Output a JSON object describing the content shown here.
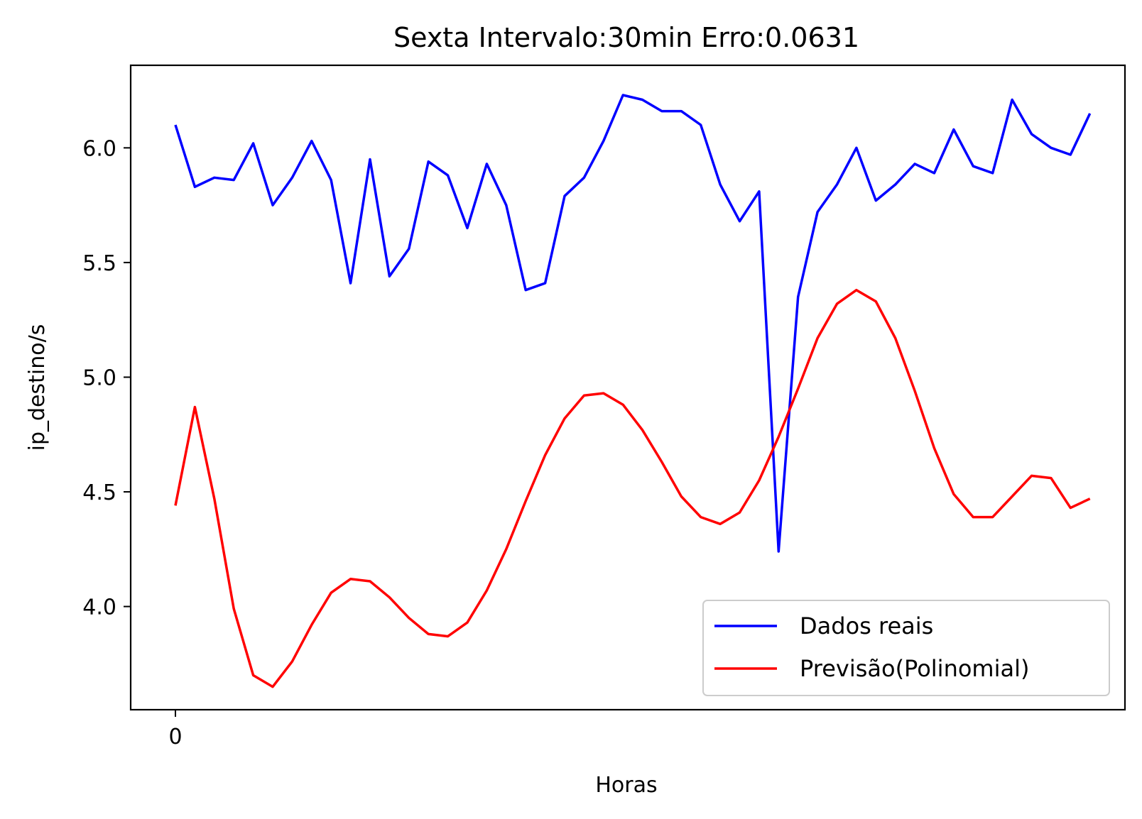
{
  "chart_data": {
    "type": "line",
    "title": "Sexta Intervalo:30min Erro:0.0631",
    "xlabel": "Horas",
    "ylabel": "ip_destino/s",
    "x_ticks": [
      0
    ],
    "y_ticks": [
      "4.0",
      "4.5",
      "5.0",
      "5.5",
      "6.0"
    ],
    "xlim": [
      -2.3,
      48.8
    ],
    "ylim": [
      3.55,
      6.36
    ],
    "grid": false,
    "legend_position": "lower right",
    "x": [
      0,
      1,
      2,
      3,
      4,
      5,
      6,
      7,
      8,
      9,
      10,
      11,
      12,
      13,
      14,
      15,
      16,
      17,
      18,
      19,
      20,
      21,
      22,
      23,
      24,
      25,
      26,
      27,
      28,
      29,
      30,
      31,
      32,
      33,
      34,
      35,
      36,
      37,
      38,
      39,
      40,
      41,
      42,
      43,
      44,
      45,
      46,
      47
    ],
    "series": [
      {
        "name": "Dados reais",
        "color": "#0000ff",
        "values": [
          6.1,
          5.83,
          5.87,
          5.86,
          6.02,
          5.75,
          5.87,
          6.03,
          5.86,
          5.41,
          5.95,
          5.44,
          5.56,
          5.94,
          5.88,
          5.65,
          5.93,
          5.75,
          5.38,
          5.41,
          5.79,
          5.87,
          6.03,
          6.23,
          6.21,
          6.16,
          6.16,
          6.1,
          5.84,
          5.68,
          5.81,
          4.24,
          5.35,
          5.72,
          5.84,
          6.0,
          5.77,
          5.84,
          5.93,
          5.89,
          6.08,
          5.92,
          5.89,
          6.21,
          6.06,
          6.0,
          5.97,
          6.15
        ]
      },
      {
        "name": "Previsão(Polinomial)",
        "color": "#ff0000",
        "values": [
          4.44,
          4.87,
          4.47,
          3.99,
          3.7,
          3.65,
          3.76,
          3.92,
          4.06,
          4.12,
          4.11,
          4.04,
          3.95,
          3.88,
          3.87,
          3.93,
          4.07,
          4.25,
          4.46,
          4.66,
          4.82,
          4.92,
          4.93,
          4.88,
          4.77,
          4.63,
          4.48,
          4.39,
          4.36,
          4.41,
          4.55,
          4.74,
          4.95,
          5.17,
          5.32,
          5.38,
          5.33,
          5.17,
          4.94,
          4.69,
          4.49,
          4.39,
          4.39,
          4.48,
          4.57,
          4.56,
          4.43,
          4.47
        ]
      }
    ]
  }
}
